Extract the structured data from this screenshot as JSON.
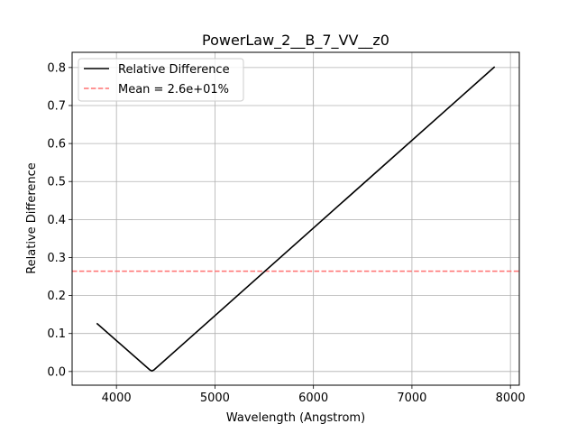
{
  "chart_data": {
    "type": "line",
    "title": "PowerLaw_2__B_7_VV__z0",
    "xlabel": "Wavelength (Angstrom)",
    "ylabel": "Relative Difference",
    "xlim": [
      3550,
      8090
    ],
    "ylim": [
      -0.036,
      0.84
    ],
    "xticks": [
      4000,
      5000,
      6000,
      7000,
      8000
    ],
    "yticks": [
      0.0,
      0.1,
      0.2,
      0.3,
      0.4,
      0.5,
      0.6,
      0.7,
      0.8
    ],
    "xtick_labels": [
      "4000",
      "5000",
      "6000",
      "7000",
      "8000"
    ],
    "ytick_labels": [
      "0.0",
      "0.1",
      "0.2",
      "0.3",
      "0.4",
      "0.5",
      "0.6",
      "0.7",
      "0.8"
    ],
    "grid": true,
    "legend_position": "top-left",
    "series": [
      {
        "name": "Relative Difference",
        "color": "#000000",
        "style": "solid",
        "x": [
          3800,
          4340,
          4360,
          4380,
          7840
        ],
        "y": [
          0.127,
          0.004,
          0.0015,
          0.004,
          0.802
        ]
      }
    ],
    "hlines": [
      {
        "name": "Mean = 2.6e+01%",
        "color": "#ff7070",
        "style": "dashed",
        "y": 0.264
      }
    ]
  }
}
